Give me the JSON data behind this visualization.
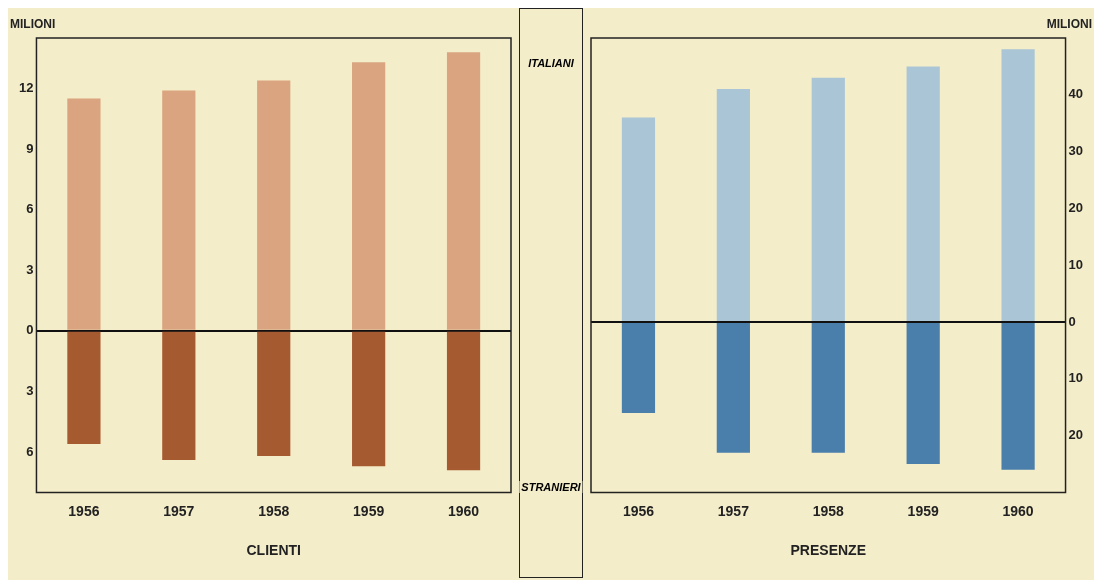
{
  "chart_data": [
    {
      "type": "bar",
      "stacked": true,
      "xlabel": "CLIENTI",
      "ylabel": "MILIONI",
      "categories": [
        "1956",
        "1957",
        "1958",
        "1959",
        "1960"
      ],
      "series": [
        {
          "name": "ITALIANI",
          "color": "#d9a47f",
          "values": [
            11.5,
            11.9,
            12.4,
            13.3,
            13.8
          ]
        },
        {
          "name": "STRANIERI",
          "color": "#a65a30",
          "values": [
            -5.6,
            -6.4,
            -6.2,
            -6.7,
            -6.9
          ]
        }
      ],
      "ylim": [
        -8,
        14.5
      ],
      "yticks": [
        {
          "value": -6,
          "label": "6"
        },
        {
          "value": -3,
          "label": "3"
        },
        0,
        3,
        6,
        9,
        12
      ]
    },
    {
      "type": "bar",
      "stacked": true,
      "xlabel": "PRESENZE",
      "y2label": "MILIONI",
      "categories": [
        "1956",
        "1957",
        "1958",
        "1959",
        "1960"
      ],
      "series": [
        {
          "color": "#a9c5d6",
          "values": [
            36,
            41,
            43,
            45,
            48
          ],
          "axis": "y2"
        },
        {
          "color": "#4a7eab",
          "values": [
            -16,
            -23,
            -23,
            -25,
            -26
          ],
          "axis": "y2"
        }
      ],
      "y2lim": [
        -30,
        50
      ],
      "y2ticks": [
        {
          "value": -20,
          "label": "20"
        },
        {
          "value": -10,
          "label": "10"
        },
        0,
        10,
        20,
        30,
        40
      ]
    }
  ]
}
